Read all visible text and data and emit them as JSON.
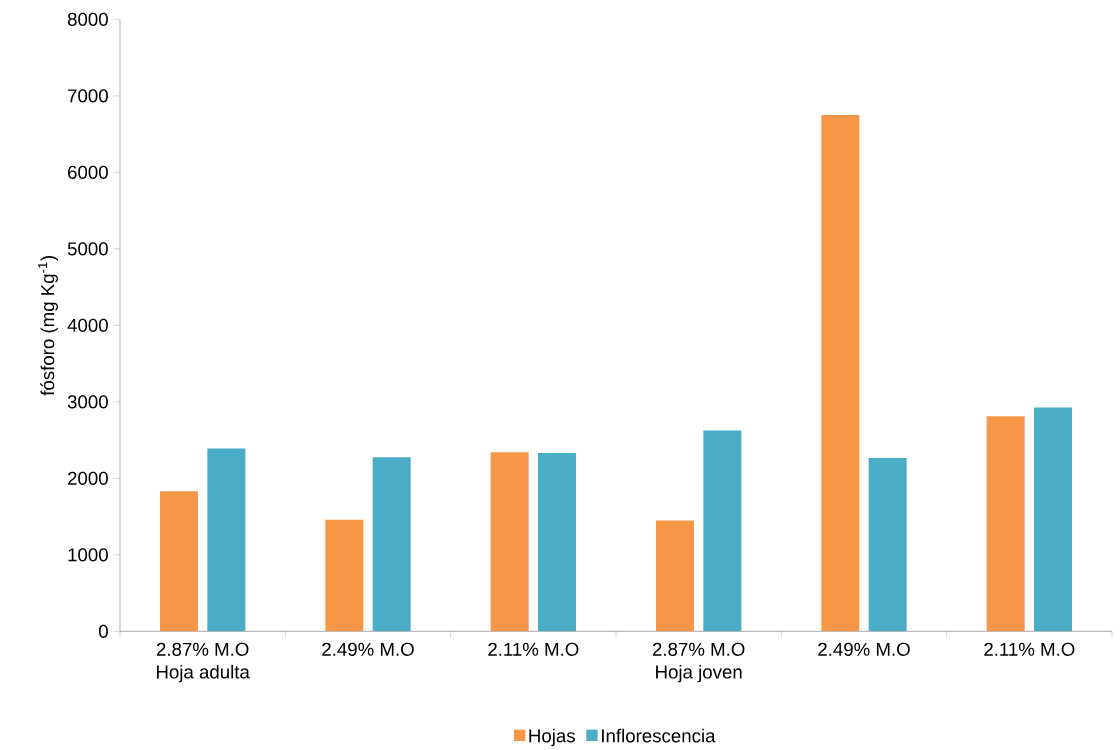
{
  "chart_data": {
    "type": "bar",
    "ylabel": "fósforo (mg Kg$^{-1}$)",
    "categories": [
      "2.87% M.O",
      "2.49% M.O",
      "2.11% M.O",
      "2.87% M.O",
      "2.49% M.O",
      "2.11% M.O"
    ],
    "annotations": [
      "Hoja adulta",
      "Hoja joven"
    ],
    "series": [
      {
        "name": "Hojas",
        "color": "#f79646",
        "values": [
          1830,
          1460,
          2340,
          1450,
          6750,
          2810
        ]
      },
      {
        "name": "Inflorescencia",
        "color": "#4bacc6",
        "values": [
          2390,
          2275,
          2330,
          2625,
          2265,
          2925
        ]
      }
    ],
    "ylim": [
      0,
      8000
    ],
    "yticks": [
      0,
      1000,
      2000,
      3000,
      4000,
      5000,
      6000,
      7000,
      8000
    ],
    "grid": false,
    "legend": "bottom"
  }
}
